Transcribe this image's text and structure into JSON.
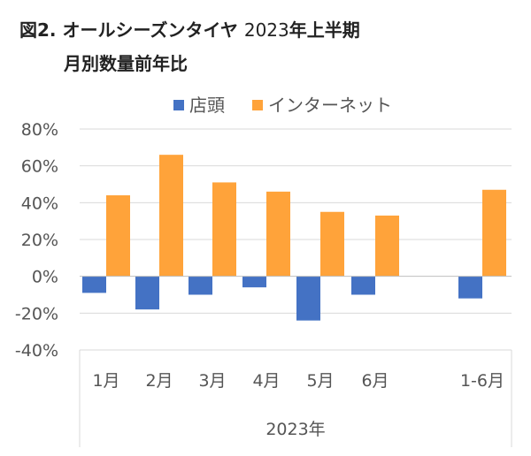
{
  "title": {
    "prefix": "図2.",
    "bold": "オールシーズンタイヤ",
    "year": "2023",
    "suffix": "年上半期",
    "line2": "月別数量前年比"
  },
  "chart_data": {
    "type": "bar",
    "categories": [
      "1月",
      "2月",
      "3月",
      "4月",
      "5月",
      "6月",
      "1-6月"
    ],
    "category_group_label": "2023年",
    "series": [
      {
        "name": "店頭",
        "color": "#4472C4",
        "values": [
          -9,
          -18,
          -10,
          -6,
          -24,
          -10,
          -12
        ]
      },
      {
        "name": "インターネット",
        "color": "#FFA33A",
        "values": [
          44,
          66,
          51,
          46,
          35,
          33,
          47
        ]
      }
    ],
    "ylim": [
      -40,
      80
    ],
    "yticks": [
      "80%",
      "60%",
      "40%",
      "20%",
      "0%",
      "-20%",
      "-40%"
    ],
    "ytick_values": [
      80,
      60,
      40,
      20,
      0,
      -20,
      -40
    ],
    "grid": true,
    "legend_position": "top"
  }
}
